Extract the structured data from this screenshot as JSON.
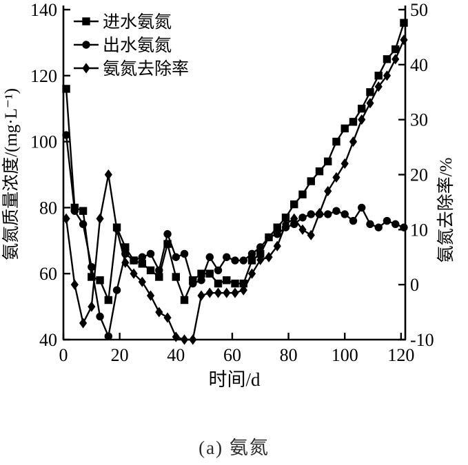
{
  "page": {
    "background": "#ffffff",
    "ink": "#000000"
  },
  "caption": "(a) 氨氮",
  "chart_data": {
    "type": "line",
    "title": "",
    "xlabel": "时间/d",
    "x_range": [
      0,
      121.5
    ],
    "x_ticks": [
      0,
      20,
      40,
      60,
      80,
      100,
      120
    ],
    "left_axis": {
      "label": "氨氮质量浓度/(mg·L⁻¹)",
      "range": [
        40,
        140
      ],
      "ticks": [
        40,
        60,
        80,
        100,
        120,
        140
      ]
    },
    "right_axis": {
      "label": "氨氮去除率/%",
      "range": [
        -10,
        50
      ],
      "ticks": [
        -10,
        0,
        10,
        20,
        30,
        40,
        50
      ]
    },
    "grid": false,
    "legend_position": "top-left",
    "x": [
      1,
      4,
      7,
      10,
      13,
      16,
      19,
      22,
      25,
      28,
      31,
      34,
      37,
      40,
      43,
      46,
      49,
      52,
      55,
      58,
      61,
      64,
      67,
      70,
      73,
      76,
      79,
      82,
      85,
      88,
      91,
      94,
      97,
      100,
      103,
      106,
      109,
      112,
      115,
      118,
      121
    ],
    "series": [
      {
        "name": "进水氨氮",
        "marker": "square",
        "axis": "left",
        "color": "#000000",
        "values": [
          116,
          80,
          79,
          59,
          58,
          52,
          74,
          68,
          64,
          63,
          61,
          59,
          69,
          59,
          52,
          58,
          60,
          60,
          57,
          58,
          57,
          57,
          64,
          66,
          71,
          74,
          77,
          81,
          84,
          88,
          91,
          94,
          100,
          104,
          106,
          110,
          115,
          120,
          125,
          128,
          136
        ]
      },
      {
        "name": "出水氨氮",
        "marker": "circle",
        "axis": "left",
        "color": "#000000",
        "values": [
          102,
          79,
          75,
          62,
          47,
          41,
          55,
          66,
          64,
          65,
          66,
          61,
          72,
          65,
          66,
          57,
          58,
          65,
          61,
          65,
          64,
          64,
          66,
          68,
          71,
          72,
          74,
          75,
          77,
          78,
          78,
          78,
          79,
          78,
          76,
          80,
          75,
          74,
          76,
          75,
          74
        ]
      },
      {
        "name": "氨氮去除率",
        "marker": "diamond",
        "axis": "right",
        "color": "#000000",
        "values": [
          12,
          0,
          -7,
          -4,
          12,
          20,
          10,
          4,
          2,
          0.5,
          -2,
          -5,
          -6,
          -9.5,
          -10,
          -10,
          -2,
          -1.5,
          -1.5,
          -1.5,
          -1.5,
          -1,
          2,
          4.5,
          5,
          7,
          11,
          12,
          10,
          9,
          13,
          17,
          19.5,
          22,
          26,
          30,
          33,
          36,
          38,
          41,
          44.5
        ]
      }
    ]
  }
}
